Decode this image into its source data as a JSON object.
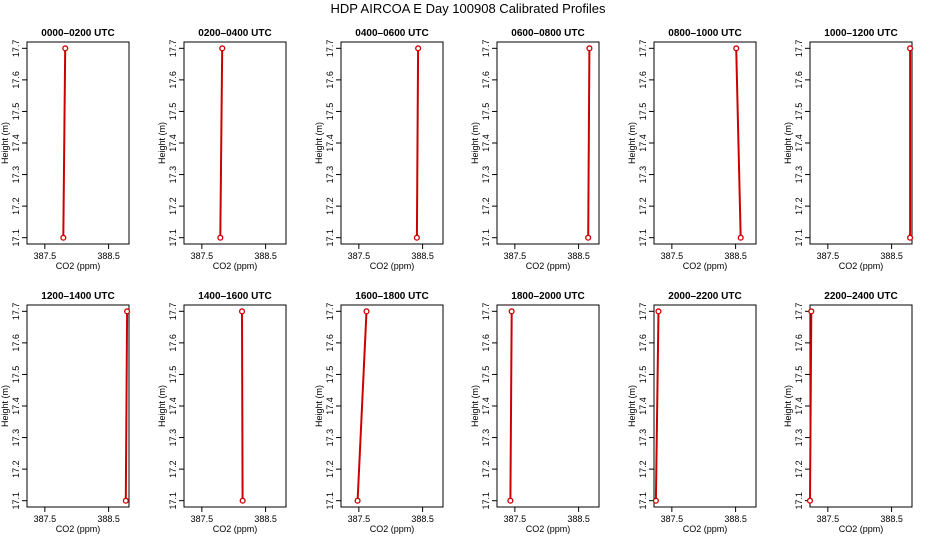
{
  "title": "HDP AIRCOA E  Day 100908  Calibrated Profiles",
  "colors": {
    "profile": "#cc0000",
    "axis": "#000000"
  },
  "chart_data": [
    {
      "type": "line",
      "title": "0000–0200 UTC",
      "xlabel": "CO2 (ppm)",
      "ylabel": "Height (m)",
      "xlim": [
        387.22,
        388.82
      ],
      "ylim": [
        17.08,
        17.72
      ],
      "x_ticks": [
        387.5,
        388.5
      ],
      "x_tick_labels": [
        "387.5",
        "388.5"
      ],
      "y_ticks": [
        17.1,
        17.2,
        17.3,
        17.4,
        17.5,
        17.6,
        17.7
      ],
      "y_tick_labels": [
        "17.1",
        "17.2",
        "17.3",
        "17.4",
        "17.5",
        "17.6",
        "17.7"
      ],
      "series": [
        {
          "x": [
            387.79,
            387.82
          ],
          "y": [
            17.1,
            17.7
          ]
        }
      ]
    },
    {
      "type": "line",
      "title": "0200–0400 UTC",
      "xlabel": "CO2 (ppm)",
      "ylabel": "Height (m)",
      "xlim": [
        387.22,
        388.82
      ],
      "ylim": [
        17.08,
        17.72
      ],
      "x_ticks": [
        387.5,
        388.5
      ],
      "x_tick_labels": [
        "387.5",
        "388.5"
      ],
      "y_ticks": [
        17.1,
        17.2,
        17.3,
        17.4,
        17.5,
        17.6,
        17.7
      ],
      "y_tick_labels": [
        "17.1",
        "17.2",
        "17.3",
        "17.4",
        "17.5",
        "17.6",
        "17.7"
      ],
      "series": [
        {
          "x": [
            387.79,
            387.82
          ],
          "y": [
            17.1,
            17.7
          ]
        }
      ]
    },
    {
      "type": "line",
      "title": "0400–0600 UTC",
      "xlabel": "CO2 (ppm)",
      "ylabel": "Height (m)",
      "xlim": [
        387.22,
        388.82
      ],
      "ylim": [
        17.08,
        17.72
      ],
      "x_ticks": [
        387.5,
        388.5
      ],
      "x_tick_labels": [
        "387.5",
        "388.5"
      ],
      "y_ticks": [
        17.1,
        17.2,
        17.3,
        17.4,
        17.5,
        17.6,
        17.7
      ],
      "y_tick_labels": [
        "17.1",
        "17.2",
        "17.3",
        "17.4",
        "17.5",
        "17.6",
        "17.7"
      ],
      "series": [
        {
          "x": [
            388.41,
            388.43
          ],
          "y": [
            17.1,
            17.7
          ]
        }
      ]
    },
    {
      "type": "line",
      "title": "0600–0800 UTC",
      "xlabel": "CO2 (ppm)",
      "ylabel": "Height (m)",
      "xlim": [
        387.22,
        388.82
      ],
      "ylim": [
        17.08,
        17.72
      ],
      "x_ticks": [
        387.5,
        388.5
      ],
      "x_tick_labels": [
        "387.5",
        "388.5"
      ],
      "y_ticks": [
        17.1,
        17.2,
        17.3,
        17.4,
        17.5,
        17.6,
        17.7
      ],
      "y_tick_labels": [
        "17.1",
        "17.2",
        "17.3",
        "17.4",
        "17.5",
        "17.6",
        "17.7"
      ],
      "series": [
        {
          "x": [
            388.65,
            388.67
          ],
          "y": [
            17.1,
            17.7
          ]
        }
      ]
    },
    {
      "type": "line",
      "title": "0800–1000 UTC",
      "xlabel": "CO2 (ppm)",
      "ylabel": "Height (m)",
      "xlim": [
        387.22,
        388.82
      ],
      "ylim": [
        17.08,
        17.72
      ],
      "x_ticks": [
        387.5,
        388.5
      ],
      "x_tick_labels": [
        "387.5",
        "388.5"
      ],
      "y_ticks": [
        17.1,
        17.2,
        17.3,
        17.4,
        17.5,
        17.6,
        17.7
      ],
      "y_tick_labels": [
        "17.1",
        "17.2",
        "17.3",
        "17.4",
        "17.5",
        "17.6",
        "17.7"
      ],
      "series": [
        {
          "x": [
            388.58,
            388.51
          ],
          "y": [
            17.1,
            17.7
          ]
        }
      ]
    },
    {
      "type": "line",
      "title": "1000–1200 UTC",
      "xlabel": "CO2 (ppm)",
      "ylabel": "Height (m)",
      "xlim": [
        387.22,
        388.82
      ],
      "ylim": [
        17.08,
        17.72
      ],
      "x_ticks": [
        387.5,
        388.5
      ],
      "x_tick_labels": [
        "387.5",
        "388.5"
      ],
      "y_ticks": [
        17.1,
        17.2,
        17.3,
        17.4,
        17.5,
        17.6,
        17.7
      ],
      "y_tick_labels": [
        "17.1",
        "17.2",
        "17.3",
        "17.4",
        "17.5",
        "17.6",
        "17.7"
      ],
      "series": [
        {
          "x": [
            388.79,
            388.79
          ],
          "y": [
            17.1,
            17.7
          ]
        }
      ]
    },
    {
      "type": "line",
      "title": "1200–1400 UTC",
      "xlabel": "CO2 (ppm)",
      "ylabel": "Height (m)",
      "xlim": [
        387.22,
        388.82
      ],
      "ylim": [
        17.08,
        17.72
      ],
      "x_ticks": [
        387.5,
        388.5
      ],
      "x_tick_labels": [
        "387.5",
        "388.5"
      ],
      "y_ticks": [
        17.1,
        17.2,
        17.3,
        17.4,
        17.5,
        17.6,
        17.7
      ],
      "y_tick_labels": [
        "17.1",
        "17.2",
        "17.3",
        "17.4",
        "17.5",
        "17.6",
        "17.7"
      ],
      "series": [
        {
          "x": [
            388.77,
            388.79
          ],
          "y": [
            17.1,
            17.7
          ]
        }
      ]
    },
    {
      "type": "line",
      "title": "1400–1600 UTC",
      "xlabel": "CO2 (ppm)",
      "ylabel": "Height (m)",
      "xlim": [
        387.22,
        388.82
      ],
      "ylim": [
        17.08,
        17.72
      ],
      "x_ticks": [
        387.5,
        388.5
      ],
      "x_tick_labels": [
        "387.5",
        "388.5"
      ],
      "y_ticks": [
        17.1,
        17.2,
        17.3,
        17.4,
        17.5,
        17.6,
        17.7
      ],
      "y_tick_labels": [
        "17.1",
        "17.2",
        "17.3",
        "17.4",
        "17.5",
        "17.6",
        "17.7"
      ],
      "series": [
        {
          "x": [
            388.14,
            388.13
          ],
          "y": [
            17.1,
            17.7
          ]
        }
      ]
    },
    {
      "type": "line",
      "title": "1600–1800 UTC",
      "xlabel": "CO2 (ppm)",
      "ylabel": "Height (m)",
      "xlim": [
        387.22,
        388.82
      ],
      "ylim": [
        17.08,
        17.72
      ],
      "x_ticks": [
        387.5,
        388.5
      ],
      "x_tick_labels": [
        "387.5",
        "388.5"
      ],
      "y_ticks": [
        17.1,
        17.2,
        17.3,
        17.4,
        17.5,
        17.6,
        17.7
      ],
      "y_tick_labels": [
        "17.1",
        "17.2",
        "17.3",
        "17.4",
        "17.5",
        "17.6",
        "17.7"
      ],
      "series": [
        {
          "x": [
            387.48,
            387.62
          ],
          "y": [
            17.1,
            17.7
          ]
        }
      ]
    },
    {
      "type": "line",
      "title": "1800–2000 UTC",
      "xlabel": "CO2 (ppm)",
      "ylabel": "Height (m)",
      "xlim": [
        387.22,
        388.82
      ],
      "ylim": [
        17.08,
        17.72
      ],
      "x_ticks": [
        387.5,
        388.5
      ],
      "x_tick_labels": [
        "387.5",
        "388.5"
      ],
      "y_ticks": [
        17.1,
        17.2,
        17.3,
        17.4,
        17.5,
        17.6,
        17.7
      ],
      "y_tick_labels": [
        "17.1",
        "17.2",
        "17.3",
        "17.4",
        "17.5",
        "17.6",
        "17.7"
      ],
      "series": [
        {
          "x": [
            387.43,
            387.45
          ],
          "y": [
            17.1,
            17.7
          ]
        }
      ]
    },
    {
      "type": "line",
      "title": "2000–2200 UTC",
      "xlabel": "CO2 (ppm)",
      "ylabel": "Height (m)",
      "xlim": [
        387.22,
        388.82
      ],
      "ylim": [
        17.08,
        17.72
      ],
      "x_ticks": [
        387.5,
        388.5
      ],
      "x_tick_labels": [
        "387.5",
        "388.5"
      ],
      "y_ticks": [
        17.1,
        17.2,
        17.3,
        17.4,
        17.5,
        17.6,
        17.7
      ],
      "y_tick_labels": [
        "17.1",
        "17.2",
        "17.3",
        "17.4",
        "17.5",
        "17.6",
        "17.7"
      ],
      "series": [
        {
          "x": [
            387.25,
            387.29
          ],
          "y": [
            17.1,
            17.7
          ]
        }
      ]
    },
    {
      "type": "line",
      "title": "2200–2400 UTC",
      "xlabel": "CO2 (ppm)",
      "ylabel": "Height (m)",
      "xlim": [
        387.22,
        388.82
      ],
      "ylim": [
        17.08,
        17.72
      ],
      "x_ticks": [
        387.5,
        388.5
      ],
      "x_tick_labels": [
        "387.5",
        "388.5"
      ],
      "y_ticks": [
        17.1,
        17.2,
        17.3,
        17.4,
        17.5,
        17.6,
        17.7
      ],
      "y_tick_labels": [
        "17.1",
        "17.2",
        "17.3",
        "17.4",
        "17.5",
        "17.6",
        "17.7"
      ],
      "series": [
        {
          "x": [
            387.22,
            387.24
          ],
          "y": [
            17.1,
            17.7
          ]
        }
      ]
    }
  ]
}
